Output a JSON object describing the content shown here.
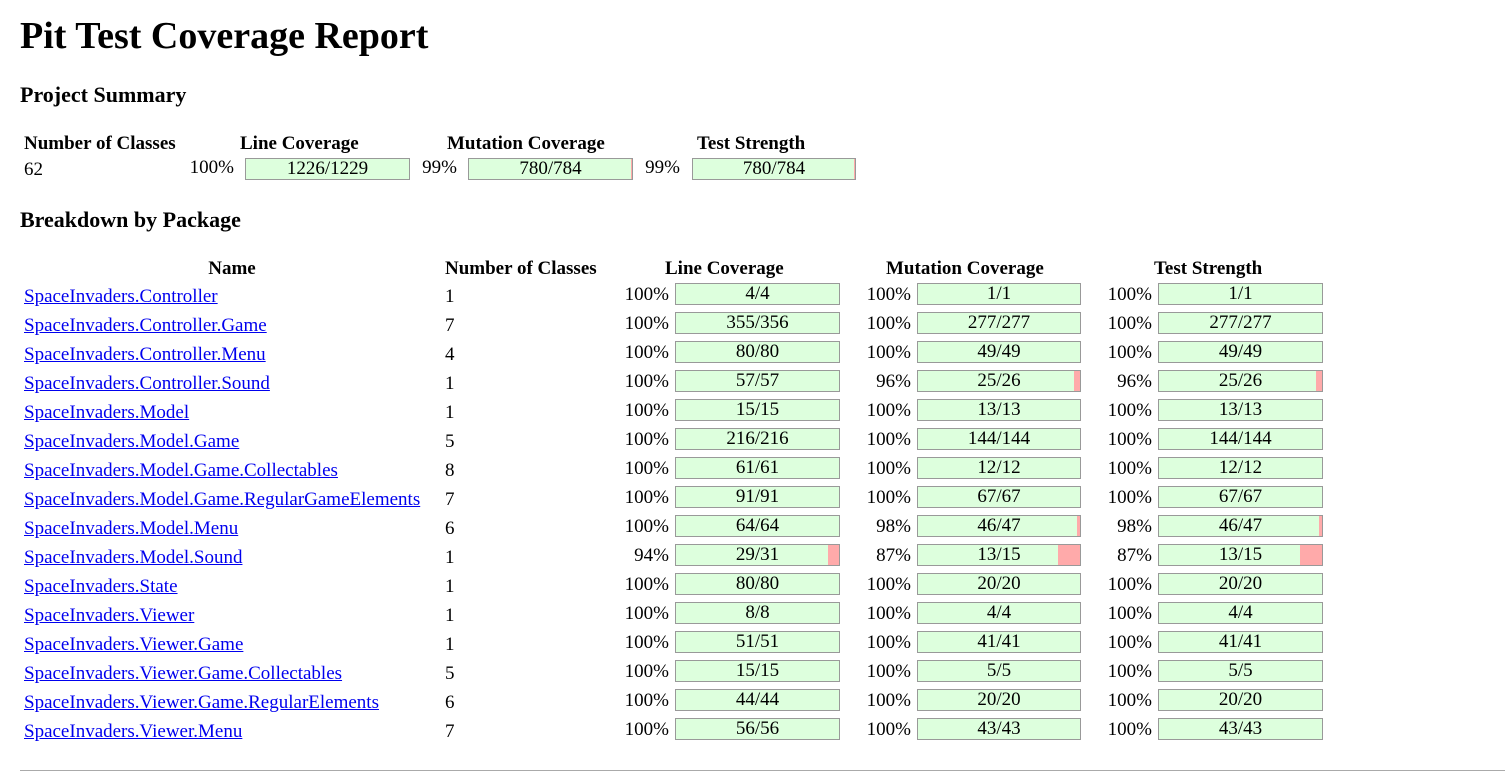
{
  "title": "Pit Test Coverage Report",
  "summary": {
    "heading": "Project Summary",
    "headers": {
      "classes": "Number of Classes",
      "line": "Line Coverage",
      "mutation": "Mutation Coverage",
      "strength": "Test Strength"
    },
    "classes": "62",
    "line": {
      "pct": "100%",
      "fraction": "1226/1229",
      "ratio": 0.9976
    },
    "mutation": {
      "pct": "99%",
      "fraction": "780/784",
      "ratio": 0.9949
    },
    "strength": {
      "pct": "99%",
      "fraction": "780/784",
      "ratio": 0.9949
    }
  },
  "breakdown": {
    "heading": "Breakdown by Package",
    "headers": {
      "name": "Name",
      "classes": "Number of Classes",
      "line": "Line Coverage",
      "mutation": "Mutation Coverage",
      "strength": "Test Strength"
    },
    "rows": [
      {
        "name": "SpaceInvaders.Controller",
        "classes": "1",
        "line": {
          "pct": "100%",
          "fraction": "4/4",
          "ratio": 1
        },
        "mutation": {
          "pct": "100%",
          "fraction": "1/1",
          "ratio": 1
        },
        "strength": {
          "pct": "100%",
          "fraction": "1/1",
          "ratio": 1
        }
      },
      {
        "name": "SpaceInvaders.Controller.Game",
        "classes": "7",
        "line": {
          "pct": "100%",
          "fraction": "355/356",
          "ratio": 0.9972
        },
        "mutation": {
          "pct": "100%",
          "fraction": "277/277",
          "ratio": 1
        },
        "strength": {
          "pct": "100%",
          "fraction": "277/277",
          "ratio": 1
        }
      },
      {
        "name": "SpaceInvaders.Controller.Menu",
        "classes": "4",
        "line": {
          "pct": "100%",
          "fraction": "80/80",
          "ratio": 1
        },
        "mutation": {
          "pct": "100%",
          "fraction": "49/49",
          "ratio": 1
        },
        "strength": {
          "pct": "100%",
          "fraction": "49/49",
          "ratio": 1
        }
      },
      {
        "name": "SpaceInvaders.Controller.Sound",
        "classes": "1",
        "line": {
          "pct": "100%",
          "fraction": "57/57",
          "ratio": 1
        },
        "mutation": {
          "pct": "96%",
          "fraction": "25/26",
          "ratio": 0.9615
        },
        "strength": {
          "pct": "96%",
          "fraction": "25/26",
          "ratio": 0.9615
        }
      },
      {
        "name": "SpaceInvaders.Model",
        "classes": "1",
        "line": {
          "pct": "100%",
          "fraction": "15/15",
          "ratio": 1
        },
        "mutation": {
          "pct": "100%",
          "fraction": "13/13",
          "ratio": 1
        },
        "strength": {
          "pct": "100%",
          "fraction": "13/13",
          "ratio": 1
        }
      },
      {
        "name": "SpaceInvaders.Model.Game",
        "classes": "5",
        "line": {
          "pct": "100%",
          "fraction": "216/216",
          "ratio": 1
        },
        "mutation": {
          "pct": "100%",
          "fraction": "144/144",
          "ratio": 1
        },
        "strength": {
          "pct": "100%",
          "fraction": "144/144",
          "ratio": 1
        }
      },
      {
        "name": "SpaceInvaders.Model.Game.Collectables",
        "classes": "8",
        "line": {
          "pct": "100%",
          "fraction": "61/61",
          "ratio": 1
        },
        "mutation": {
          "pct": "100%",
          "fraction": "12/12",
          "ratio": 1
        },
        "strength": {
          "pct": "100%",
          "fraction": "12/12",
          "ratio": 1
        }
      },
      {
        "name": "SpaceInvaders.Model.Game.RegularGameElements",
        "classes": "7",
        "line": {
          "pct": "100%",
          "fraction": "91/91",
          "ratio": 1
        },
        "mutation": {
          "pct": "100%",
          "fraction": "67/67",
          "ratio": 1
        },
        "strength": {
          "pct": "100%",
          "fraction": "67/67",
          "ratio": 1
        }
      },
      {
        "name": "SpaceInvaders.Model.Menu",
        "classes": "6",
        "line": {
          "pct": "100%",
          "fraction": "64/64",
          "ratio": 1
        },
        "mutation": {
          "pct": "98%",
          "fraction": "46/47",
          "ratio": 0.9787
        },
        "strength": {
          "pct": "98%",
          "fraction": "46/47",
          "ratio": 0.9787
        }
      },
      {
        "name": "SpaceInvaders.Model.Sound",
        "classes": "1",
        "line": {
          "pct": "94%",
          "fraction": "29/31",
          "ratio": 0.9355
        },
        "mutation": {
          "pct": "87%",
          "fraction": "13/15",
          "ratio": 0.8667
        },
        "strength": {
          "pct": "87%",
          "fraction": "13/15",
          "ratio": 0.8667
        }
      },
      {
        "name": "SpaceInvaders.State",
        "classes": "1",
        "line": {
          "pct": "100%",
          "fraction": "80/80",
          "ratio": 1
        },
        "mutation": {
          "pct": "100%",
          "fraction": "20/20",
          "ratio": 1
        },
        "strength": {
          "pct": "100%",
          "fraction": "20/20",
          "ratio": 1
        }
      },
      {
        "name": "SpaceInvaders.Viewer",
        "classes": "1",
        "line": {
          "pct": "100%",
          "fraction": "8/8",
          "ratio": 1
        },
        "mutation": {
          "pct": "100%",
          "fraction": "4/4",
          "ratio": 1
        },
        "strength": {
          "pct": "100%",
          "fraction": "4/4",
          "ratio": 1
        }
      },
      {
        "name": "SpaceInvaders.Viewer.Game",
        "classes": "1",
        "line": {
          "pct": "100%",
          "fraction": "51/51",
          "ratio": 1
        },
        "mutation": {
          "pct": "100%",
          "fraction": "41/41",
          "ratio": 1
        },
        "strength": {
          "pct": "100%",
          "fraction": "41/41",
          "ratio": 1
        }
      },
      {
        "name": "SpaceInvaders.Viewer.Game.Collectables",
        "classes": "5",
        "line": {
          "pct": "100%",
          "fraction": "15/15",
          "ratio": 1
        },
        "mutation": {
          "pct": "100%",
          "fraction": "5/5",
          "ratio": 1
        },
        "strength": {
          "pct": "100%",
          "fraction": "5/5",
          "ratio": 1
        }
      },
      {
        "name": "SpaceInvaders.Viewer.Game.RegularElements",
        "classes": "6",
        "line": {
          "pct": "100%",
          "fraction": "44/44",
          "ratio": 1
        },
        "mutation": {
          "pct": "100%",
          "fraction": "20/20",
          "ratio": 1
        },
        "strength": {
          "pct": "100%",
          "fraction": "20/20",
          "ratio": 1
        }
      },
      {
        "name": "SpaceInvaders.Viewer.Menu",
        "classes": "7",
        "line": {
          "pct": "100%",
          "fraction": "56/56",
          "ratio": 1
        },
        "mutation": {
          "pct": "100%",
          "fraction": "43/43",
          "ratio": 1
        },
        "strength": {
          "pct": "100%",
          "fraction": "43/43",
          "ratio": 1
        }
      }
    ]
  },
  "colors": {
    "covered": "#ddffdd",
    "uncovered": "#ffaaaa",
    "link": "#0000ee",
    "bar_border": "#999999"
  }
}
